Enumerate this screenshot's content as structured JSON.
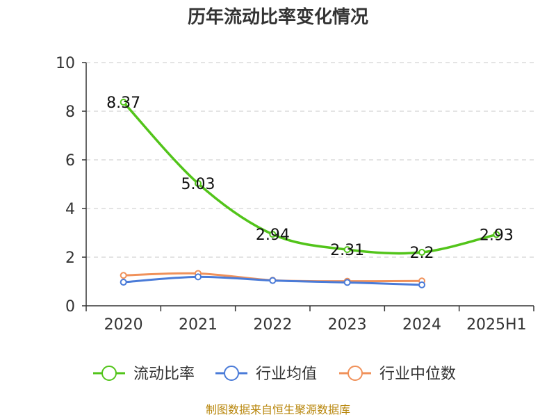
{
  "chart_data": {
    "type": "line",
    "title": "历年流动比率变化情况",
    "categories": [
      "2020",
      "2021",
      "2022",
      "2023",
      "2024",
      "2025H1"
    ],
    "ylim": [
      0,
      10
    ],
    "yticks": [
      0,
      2,
      4,
      6,
      8,
      10
    ],
    "grid": true,
    "legend_position": "bottom",
    "series": [
      {
        "name": "流动比率",
        "color": "#52c41a",
        "values": [
          8.37,
          5.03,
          2.94,
          2.31,
          2.2,
          2.93
        ],
        "labels": [
          "8.37",
          "5.03",
          "2.94",
          "2.31",
          "2.2",
          "2.93"
        ],
        "show_labels": true
      },
      {
        "name": "行业均值",
        "color": "#4a7bd8",
        "values": [
          0.97,
          1.19,
          1.04,
          0.96,
          0.86,
          null
        ],
        "show_labels": false
      },
      {
        "name": "行业中位数",
        "color": "#f0915a",
        "values": [
          1.25,
          1.33,
          1.05,
          1.01,
          1.02,
          null
        ],
        "show_labels": false
      }
    ]
  },
  "source_text": "制图数据来自恒生聚源数据库"
}
